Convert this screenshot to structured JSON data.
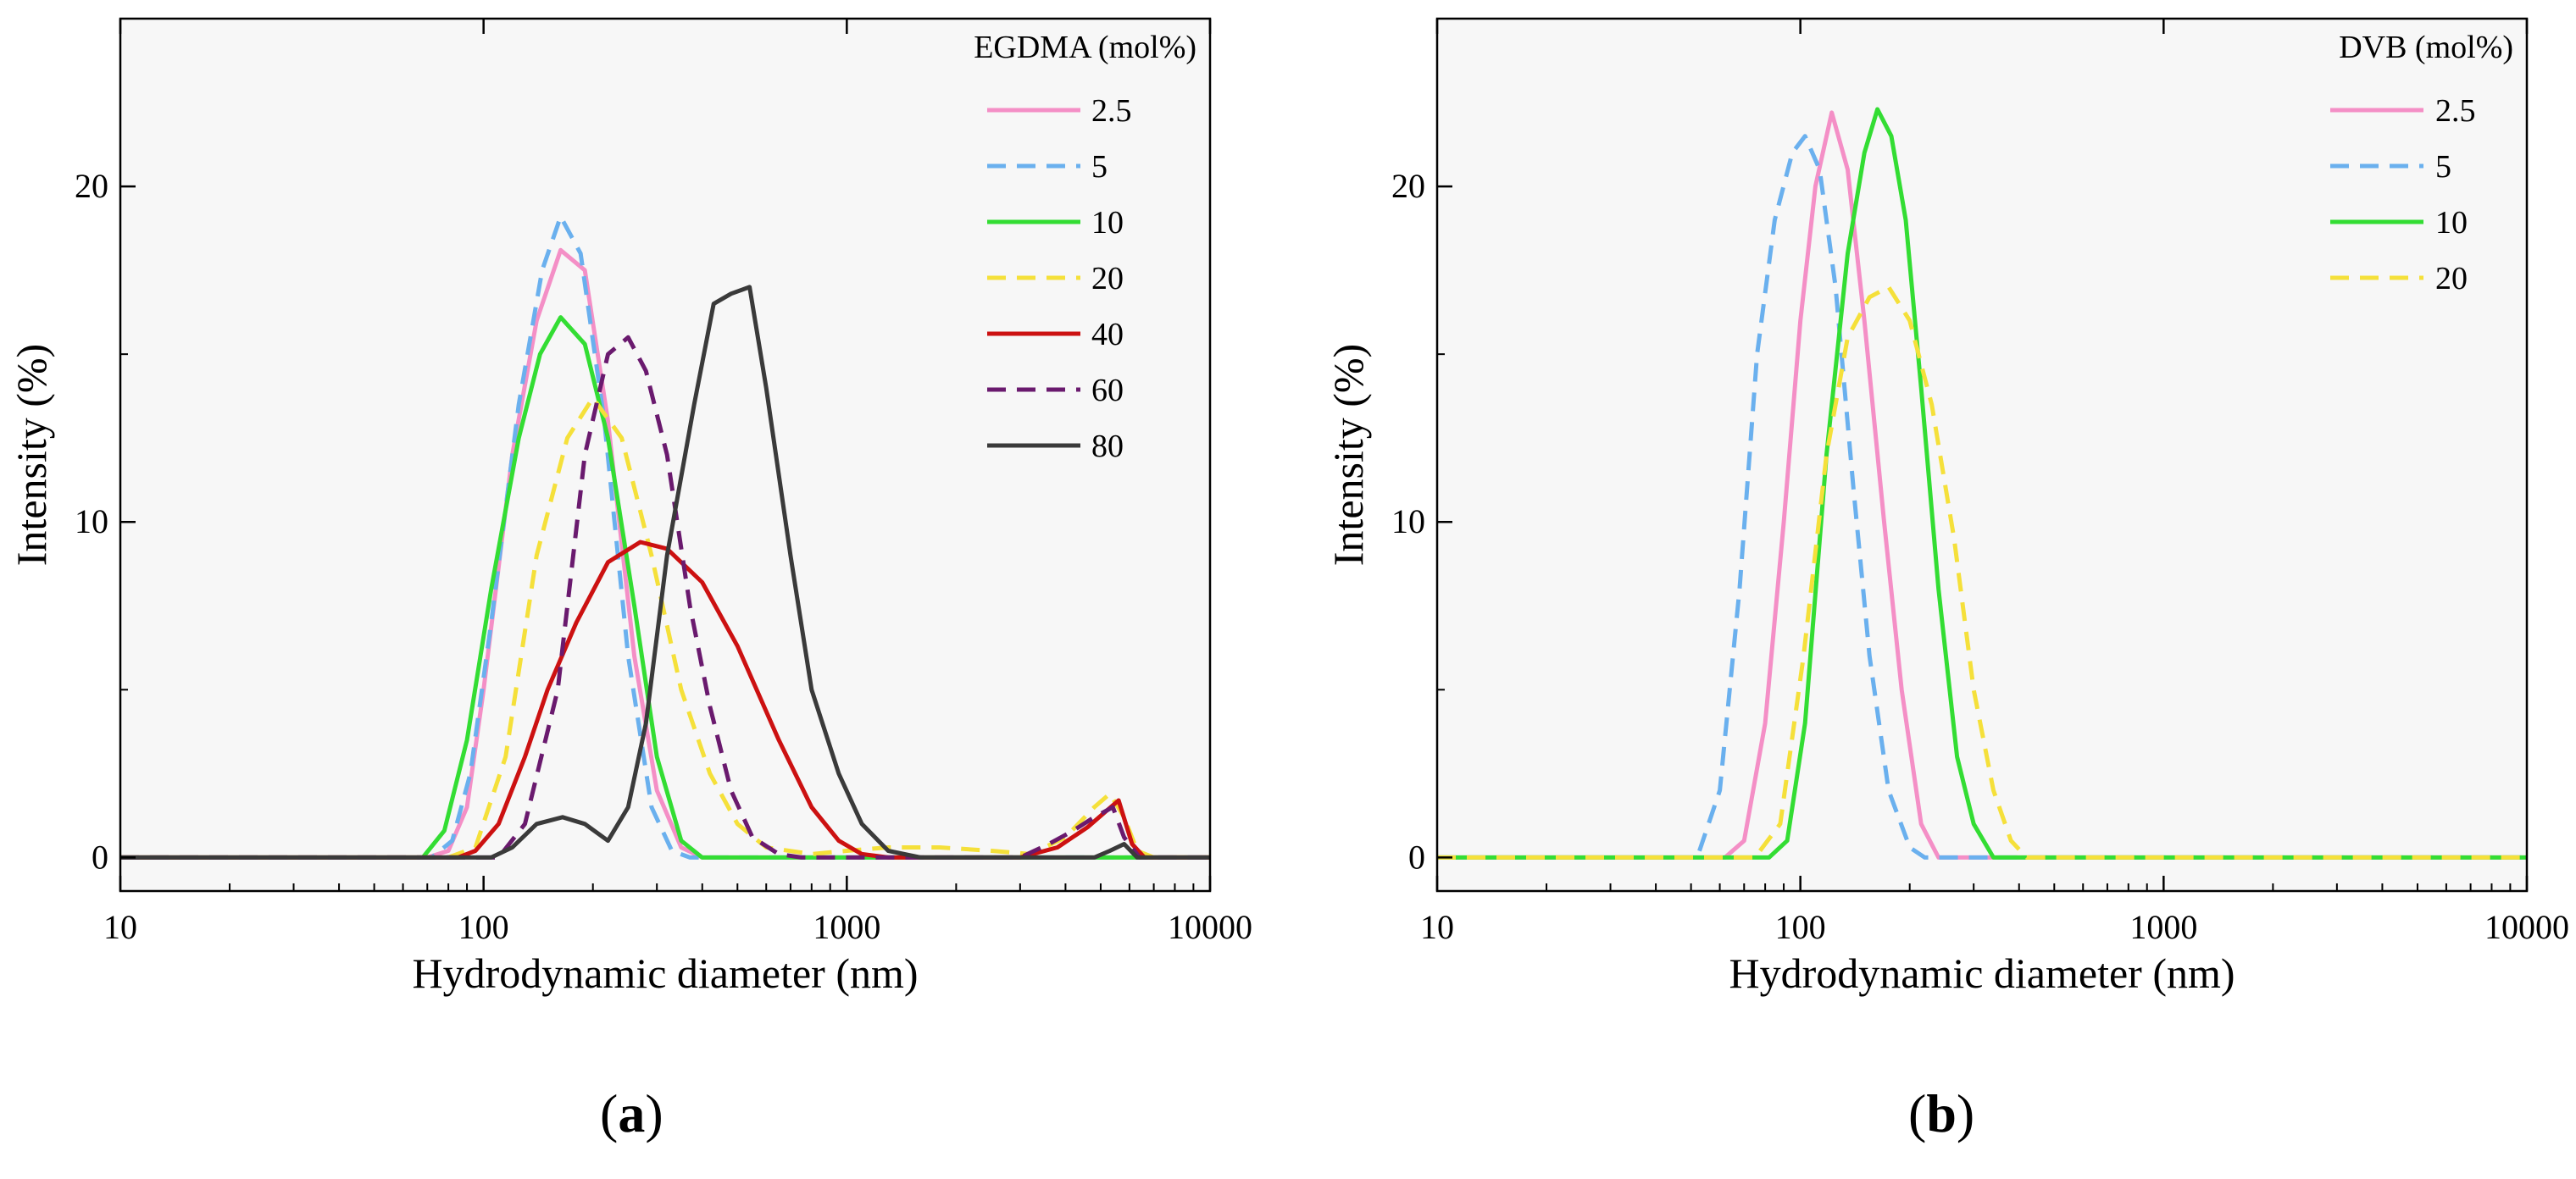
{
  "chart_data": [
    {
      "type": "line",
      "panel_label": "a",
      "xscale": "log",
      "xlabel": "Hydrodynamic diameter (nm)",
      "ylabel": "Intensity (%)",
      "xlim": [
        10,
        10000
      ],
      "ylim": [
        -1,
        25
      ],
      "xticks": [
        10,
        100,
        1000,
        10000
      ],
      "xtick_labels": [
        "10",
        "100",
        "1000",
        "10000"
      ],
      "yticks": [
        0,
        10,
        20
      ],
      "ytick_labels": [
        "0",
        "10",
        "20"
      ],
      "grid": false,
      "legend_title": "EGDMA (mol%)",
      "legend_position": "top-right",
      "series": [
        {
          "name": "2.5",
          "color": "#f48fc6",
          "dash": "solid",
          "x": [
            10,
            70,
            80,
            90,
            100,
            120,
            140,
            163,
            190,
            220,
            260,
            300,
            350,
            400,
            450,
            10000
          ],
          "values": [
            0,
            0,
            0.2,
            1.5,
            5,
            12,
            16,
            18.1,
            17.5,
            13,
            6,
            2,
            0.3,
            0,
            0,
            0
          ]
        },
        {
          "name": "5",
          "color": "#6ab0ee",
          "dash": "dashed",
          "x": [
            10,
            72,
            82,
            92,
            105,
            125,
            145,
            163,
            185,
            215,
            250,
            290,
            330,
            370,
            420,
            10000
          ],
          "values": [
            0,
            0,
            0.5,
            2.5,
            7,
            13.5,
            17.5,
            19.1,
            18,
            13,
            6,
            1.5,
            0.2,
            0,
            0,
            0
          ]
        },
        {
          "name": "10",
          "color": "#33dd33",
          "dash": "solid",
          "x": [
            10,
            68,
            78,
            90,
            105,
            125,
            143,
            163,
            190,
            220,
            260,
            300,
            350,
            400,
            450,
            10000
          ],
          "values": [
            0,
            0,
            0.8,
            3.5,
            8,
            12.5,
            15,
            16.1,
            15.3,
            12.5,
            7.5,
            3,
            0.5,
            0,
            0,
            0
          ]
        },
        {
          "name": "20",
          "color": "#f5e03a",
          "dash": "dashed",
          "x": [
            10,
            80,
            95,
            115,
            140,
            170,
            200,
            240,
            290,
            350,
            420,
            500,
            600,
            800,
            1000,
            1300,
            1800,
            2500,
            3200,
            4000,
            4800,
            5300,
            5800,
            6300,
            7000,
            10000
          ],
          "values": [
            0,
            0,
            0.3,
            3,
            9,
            12.5,
            13.7,
            12.5,
            9,
            5,
            2.5,
            1,
            0.3,
            0.1,
            0.2,
            0.3,
            0.3,
            0.2,
            0.1,
            0.6,
            1.5,
            1.9,
            1.2,
            0.2,
            0,
            0
          ]
        },
        {
          "name": "40",
          "color": "#cc1111",
          "dash": "solid",
          "x": [
            10,
            85,
            95,
            110,
            130,
            150,
            180,
            220,
            270,
            320,
            400,
            500,
            650,
            800,
            950,
            1100,
            1300,
            1600,
            2200,
            3000,
            3800,
            4600,
            5200,
            5600,
            6100,
            6600,
            10000
          ],
          "values": [
            0,
            0,
            0.2,
            1,
            3,
            5,
            7,
            8.8,
            9.4,
            9.2,
            8.2,
            6.3,
            3.5,
            1.5,
            0.5,
            0.1,
            0,
            0,
            0,
            0,
            0.3,
            0.9,
            1.4,
            1.7,
            0.4,
            0,
            0
          ]
        },
        {
          "name": "60",
          "color": "#6a1a6e",
          "dash": "dashed",
          "x": [
            10,
            110,
            130,
            160,
            190,
            220,
            250,
            280,
            320,
            370,
            420,
            480,
            550,
            650,
            750,
            900,
            1100,
            1500,
            2200,
            3000,
            3600,
            4200,
            4800,
            5400,
            5800,
            6400,
            10000
          ],
          "values": [
            0,
            0,
            1,
            5,
            12,
            15,
            15.5,
            14.5,
            12,
            7.5,
            4.5,
            2,
            0.6,
            0.1,
            0,
            0,
            0,
            0,
            0,
            0,
            0.4,
            0.8,
            1.2,
            1.5,
            0.6,
            0,
            0
          ]
        },
        {
          "name": "80",
          "color": "#3a3a3a",
          "dash": "solid",
          "x": [
            10,
            105,
            120,
            140,
            165,
            190,
            220,
            250,
            280,
            320,
            380,
            430,
            480,
            540,
            600,
            700,
            800,
            950,
            1100,
            1300,
            1600,
            4800,
            5300,
            5800,
            6300,
            10000
          ],
          "values": [
            0,
            0,
            0.3,
            1,
            1.2,
            1,
            0.5,
            1.5,
            4,
            9,
            13.5,
            16.5,
            16.8,
            17,
            14,
            9,
            5,
            2.5,
            1,
            0.2,
            0,
            0,
            0.2,
            0.4,
            0,
            0
          ]
        }
      ]
    },
    {
      "type": "line",
      "panel_label": "b",
      "xscale": "log",
      "xlabel": "Hydrodynamic diameter (nm)",
      "ylabel": "Intensity (%)",
      "xlim": [
        10,
        10000
      ],
      "ylim": [
        -1,
        25
      ],
      "xticks": [
        10,
        100,
        1000,
        10000
      ],
      "xtick_labels": [
        "10",
        "100",
        "1000",
        "10000"
      ],
      "yticks": [
        0,
        10,
        20
      ],
      "ytick_labels": [
        "0",
        "10",
        "20"
      ],
      "grid": false,
      "legend_title": "DVB (mol%)",
      "legend_position": "top-right",
      "series": [
        {
          "name": "2.5",
          "color": "#f48fc6",
          "dash": "solid",
          "x": [
            10,
            62,
            70,
            80,
            90,
            100,
            110,
            122,
            135,
            150,
            170,
            190,
            215,
            240,
            260,
            10000
          ],
          "values": [
            0,
            0,
            0.5,
            4,
            10,
            16,
            20,
            22.2,
            20.5,
            16,
            10,
            5,
            1,
            0,
            0,
            0
          ]
        },
        {
          "name": "5",
          "color": "#6ab0ee",
          "dash": "dashed",
          "x": [
            10,
            52,
            60,
            68,
            76,
            85,
            95,
            103,
            113,
            125,
            140,
            155,
            175,
            200,
            220,
            10000
          ],
          "values": [
            0,
            0,
            2,
            8,
            15,
            19,
            21,
            21.5,
            20.5,
            17,
            11,
            6,
            2,
            0.3,
            0,
            0
          ]
        },
        {
          "name": "10",
          "color": "#33dd33",
          "dash": "solid",
          "x": [
            10,
            82,
            92,
            103,
            118,
            135,
            150,
            163,
            178,
            195,
            215,
            240,
            270,
            300,
            340,
            10000
          ],
          "values": [
            0,
            0,
            0.5,
            4,
            12,
            18,
            21,
            22.3,
            21.5,
            19,
            14,
            8,
            3,
            1,
            0,
            0
          ]
        },
        {
          "name": "20",
          "color": "#f5e03a",
          "dash": "dashed",
          "x": [
            10,
            75,
            88,
            102,
            118,
            135,
            155,
            175,
            200,
            230,
            265,
            300,
            340,
            380,
            420,
            10000
          ],
          "values": [
            0,
            0,
            1,
            6,
            12,
            15.5,
            16.7,
            17,
            16,
            13.5,
            9.5,
            5,
            2,
            0.5,
            0,
            0
          ]
        }
      ]
    }
  ]
}
